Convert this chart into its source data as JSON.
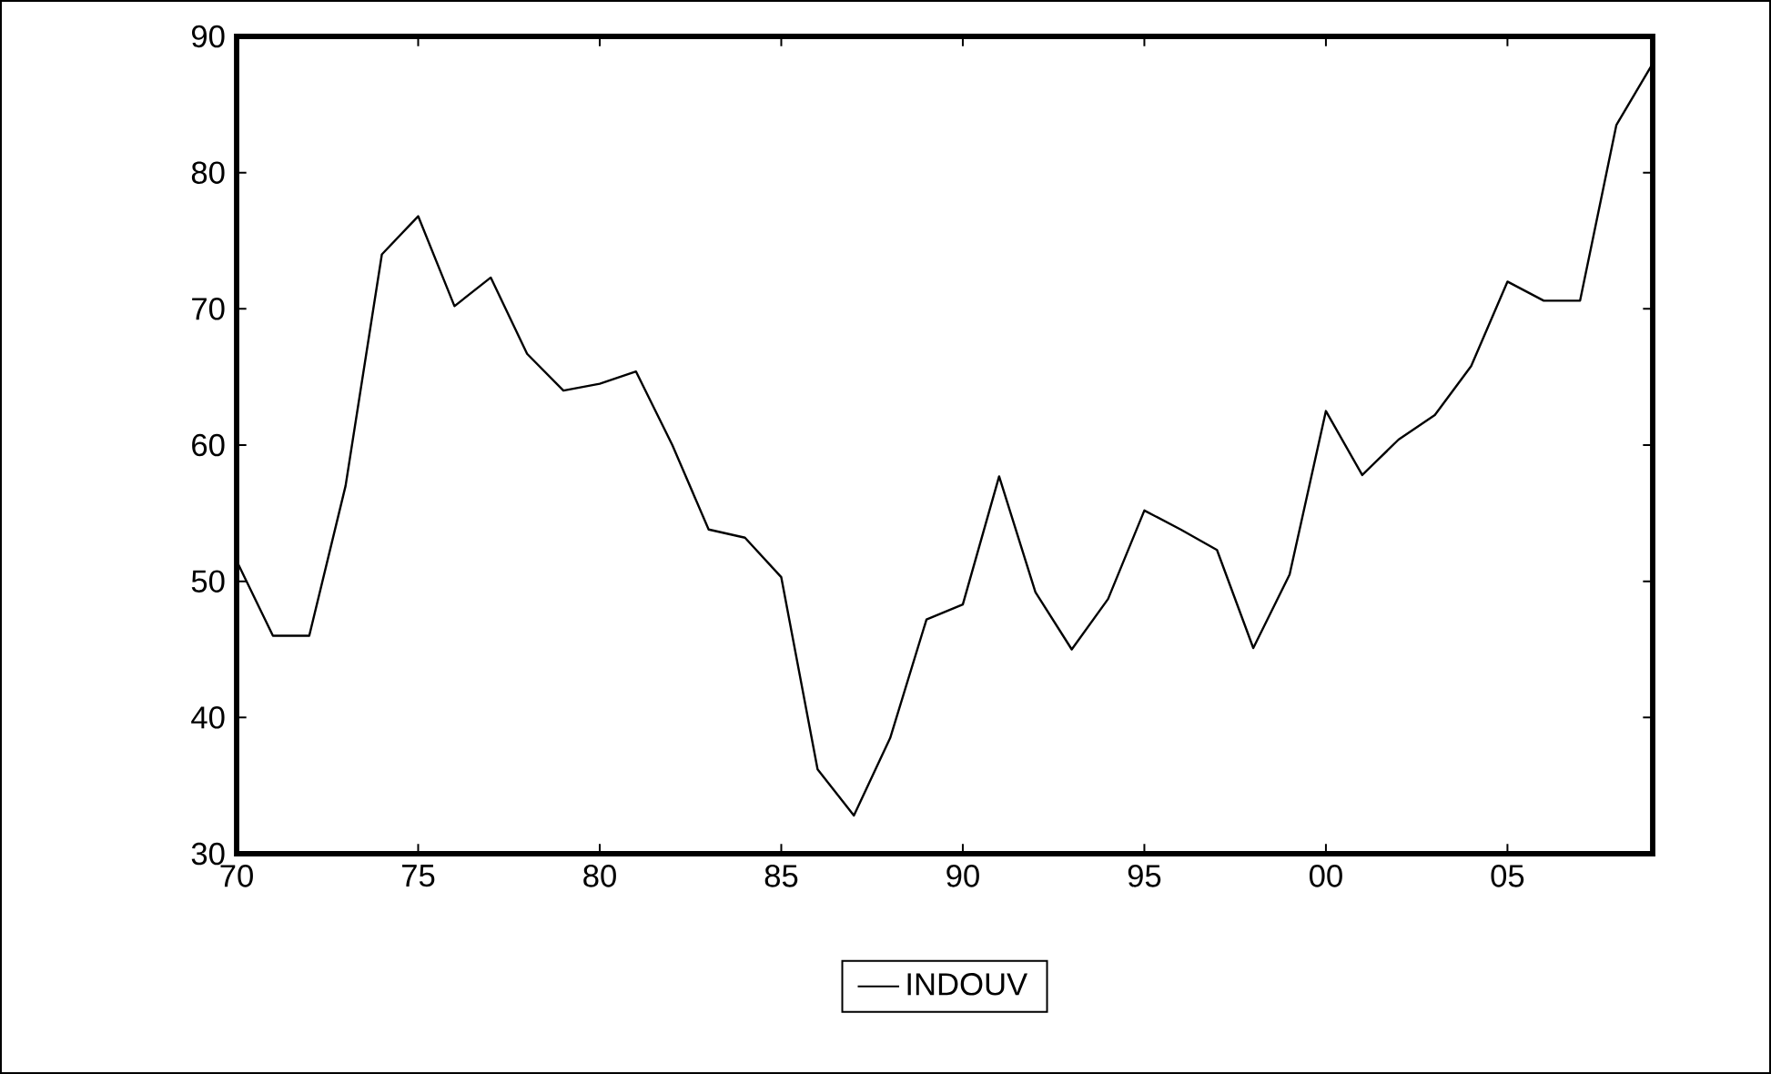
{
  "chart_data": {
    "type": "line",
    "xlim": [
      1970,
      2009
    ],
    "ylim": [
      30,
      90
    ],
    "xticks": [
      {
        "value": 1970,
        "label": "70"
      },
      {
        "value": 1975,
        "label": "75"
      },
      {
        "value": 1980,
        "label": "80"
      },
      {
        "value": 1985,
        "label": "85"
      },
      {
        "value": 1990,
        "label": "90"
      },
      {
        "value": 1995,
        "label": "95"
      },
      {
        "value": 2000,
        "label": "00"
      },
      {
        "value": 2005,
        "label": "05"
      }
    ],
    "yticks": [
      30,
      40,
      50,
      60,
      70,
      80,
      90
    ],
    "x": [
      1970,
      1971,
      1972,
      1973,
      1974,
      1975,
      1976,
      1977,
      1978,
      1979,
      1980,
      1981,
      1982,
      1983,
      1984,
      1985,
      1986,
      1987,
      1988,
      1989,
      1990,
      1991,
      1992,
      1993,
      1994,
      1995,
      1996,
      1997,
      1998,
      1999,
      2000,
      2001,
      2002,
      2003,
      2004,
      2005,
      2006,
      2007,
      2008,
      2009
    ],
    "series": [
      {
        "name": "INDOUV",
        "color": "#000000",
        "values": [
          51.5,
          46,
          46,
          57,
          74,
          76.8,
          70.2,
          72.3,
          66.7,
          64,
          64.5,
          65.4,
          60,
          53.8,
          53.2,
          50.3,
          36.2,
          32.8,
          38.5,
          47.2,
          48.3,
          57.7,
          49.2,
          45,
          48.7,
          55.2,
          53.8,
          52.3,
          45.1,
          50.5,
          62.5,
          57.8,
          60.4,
          62.2,
          65.8,
          72,
          70.6,
          70.6,
          83.5,
          88
        ]
      }
    ],
    "legend": "bottom",
    "grid": false,
    "marker": "none",
    "line_style": "solid"
  }
}
